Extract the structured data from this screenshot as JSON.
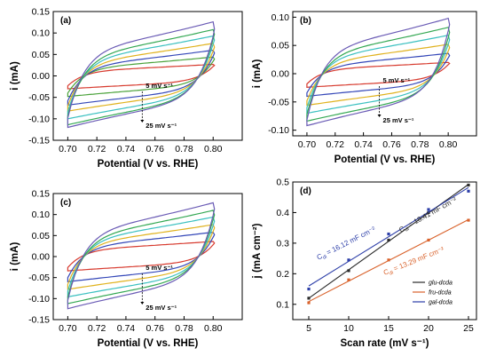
{
  "chart_data": [
    {
      "type": "line",
      "panel_label": "(a)",
      "xlabel": "Potential (V vs. RHE)",
      "ylabel": "i (mA)",
      "xlim": [
        0.69,
        0.82
      ],
      "ylim": [
        -0.15,
        0.15
      ],
      "xticks": [
        0.7,
        0.72,
        0.74,
        0.76,
        0.78,
        0.8
      ],
      "yticks": [
        -0.15,
        -0.1,
        -0.05,
        0.0,
        0.05,
        0.1,
        0.15
      ],
      "annotations": [
        "5 mV s⁻¹",
        "25 mV s⁻¹"
      ],
      "series": [
        {
          "color": "#d73a2e",
          "x_range": [
            0.7,
            0.8
          ],
          "upper": [
            -0.023,
            0.027
          ],
          "lower": [
            -0.03,
            0.022
          ]
        },
        {
          "color": "#4aa23a",
          "x_range": [
            0.7,
            0.8
          ],
          "upper": [
            -0.04,
            0.044
          ],
          "lower": [
            -0.048,
            0.034
          ]
        },
        {
          "color": "#3447b8",
          "x_range": [
            0.7,
            0.8
          ],
          "upper": [
            -0.058,
            0.06
          ],
          "lower": [
            -0.068,
            0.046
          ]
        },
        {
          "color": "#e0b21e",
          "x_range": [
            0.7,
            0.8
          ],
          "upper": [
            -0.07,
            0.076
          ],
          "lower": [
            -0.082,
            0.058
          ]
        },
        {
          "color": "#3bc0c0",
          "x_range": [
            0.7,
            0.8
          ],
          "upper": [
            -0.083,
            0.093
          ],
          "lower": [
            -0.1,
            0.074
          ]
        },
        {
          "color": "#34a853",
          "x_range": [
            0.7,
            0.8
          ],
          "upper": [
            -0.093,
            0.108
          ],
          "lower": [
            -0.114,
            0.086
          ]
        },
        {
          "color": "#6a5bb5",
          "x_range": [
            0.7,
            0.8
          ],
          "upper": [
            -0.098,
            0.126
          ],
          "lower": [
            -0.12,
            0.092
          ]
        }
      ]
    },
    {
      "type": "line",
      "panel_label": "(b)",
      "xlabel": "Potential (V vs. RHE)",
      "ylabel": "i (mA)",
      "xlim": [
        0.69,
        0.82
      ],
      "ylim": [
        -0.11,
        0.11
      ],
      "xticks": [
        0.7,
        0.72,
        0.74,
        0.76,
        0.78,
        0.8
      ],
      "yticks": [
        -0.1,
        -0.05,
        0.0,
        0.05,
        0.1
      ],
      "annotations": [
        "5 mV s⁻¹",
        "25 mV s⁻¹"
      ],
      "series": [
        {
          "color": "#d73a2e",
          "x_range": [
            0.7,
            0.8
          ],
          "upper": [
            -0.018,
            0.02
          ],
          "lower": [
            -0.024,
            0.016
          ]
        },
        {
          "color": "#3447b8",
          "x_range": [
            0.7,
            0.8
          ],
          "upper": [
            -0.034,
            0.036
          ],
          "lower": [
            -0.04,
            0.028
          ]
        },
        {
          "color": "#e0b21e",
          "x_range": [
            0.7,
            0.8
          ],
          "upper": [
            -0.048,
            0.052
          ],
          "lower": [
            -0.056,
            0.04
          ]
        },
        {
          "color": "#3bc0c0",
          "x_range": [
            0.7,
            0.8
          ],
          "upper": [
            -0.06,
            0.068
          ],
          "lower": [
            -0.07,
            0.052
          ]
        },
        {
          "color": "#34a853",
          "x_range": [
            0.7,
            0.8
          ],
          "upper": [
            -0.072,
            0.082
          ],
          "lower": [
            -0.084,
            0.064
          ]
        },
        {
          "color": "#6a5bb5",
          "x_range": [
            0.7,
            0.8
          ],
          "upper": [
            -0.082,
            0.098
          ],
          "lower": [
            -0.092,
            0.076
          ]
        }
      ]
    },
    {
      "type": "line",
      "panel_label": "(c)",
      "xlabel": "Potential (V vs. RHE)",
      "ylabel": "i (mA)",
      "xlim": [
        0.69,
        0.82
      ],
      "ylim": [
        -0.15,
        0.15
      ],
      "xticks": [
        0.7,
        0.72,
        0.74,
        0.76,
        0.78,
        0.8
      ],
      "yticks": [
        -0.15,
        -0.1,
        -0.05,
        0.0,
        0.05,
        0.1,
        0.15
      ],
      "annotations": [
        "5 mV s⁻¹",
        "25 mV s⁻¹"
      ],
      "series": [
        {
          "color": "#d73a2e",
          "x_range": [
            0.7,
            0.8
          ],
          "upper": [
            -0.026,
            0.036
          ],
          "lower": [
            -0.034,
            0.028
          ]
        },
        {
          "color": "#3447b8",
          "x_range": [
            0.7,
            0.8
          ],
          "upper": [
            -0.05,
            0.058
          ],
          "lower": [
            -0.06,
            0.046
          ]
        },
        {
          "color": "#e0b21e",
          "x_range": [
            0.7,
            0.8
          ],
          "upper": [
            -0.066,
            0.076
          ],
          "lower": [
            -0.078,
            0.06
          ]
        },
        {
          "color": "#3bc0c0",
          "x_range": [
            0.7,
            0.8
          ],
          "upper": [
            -0.082,
            0.094
          ],
          "lower": [
            -0.096,
            0.074
          ]
        },
        {
          "color": "#34a853",
          "x_range": [
            0.7,
            0.8
          ],
          "upper": [
            -0.096,
            0.11
          ],
          "lower": [
            -0.112,
            0.088
          ]
        },
        {
          "color": "#6a5bb5",
          "x_range": [
            0.7,
            0.8
          ],
          "upper": [
            -0.104,
            0.128
          ],
          "lower": [
            -0.124,
            0.098
          ]
        }
      ]
    },
    {
      "type": "scatter",
      "panel_label": "(d)",
      "xlabel": "Scan rate (mV s⁻¹)",
      "ylabel": "j (mA cm⁻²)",
      "xlim": [
        3,
        26
      ],
      "ylim": [
        0.05,
        0.5
      ],
      "xticks": [
        5,
        10,
        15,
        20,
        25
      ],
      "yticks": [
        0.1,
        0.2,
        0.3,
        0.4,
        0.5
      ],
      "legend_position": "bottom-right",
      "series": [
        {
          "name": "glu-dcda",
          "color": "#2a2a2a",
          "x": [
            5,
            10,
            15,
            20,
            25
          ],
          "y": [
            0.12,
            0.21,
            0.31,
            0.4,
            0.49
          ],
          "cdl_label": "C",
          "cdl_sub": "dl",
          "cdl_text": " = 18.41 mF cm⁻²"
        },
        {
          "name": "fru-dcda",
          "color": "#d9622b",
          "x": [
            5,
            10,
            15,
            20,
            25
          ],
          "y": [
            0.105,
            0.18,
            0.245,
            0.31,
            0.375
          ],
          "cdl_label": "C",
          "cdl_sub": "dl",
          "cdl_text": " = 13.29 mF cm⁻²"
        },
        {
          "name": "gal-dcda",
          "color": "#2c3ea8",
          "x": [
            5,
            10,
            15,
            20,
            25
          ],
          "y": [
            0.15,
            0.245,
            0.33,
            0.41,
            0.47
          ],
          "cdl_label": "C",
          "cdl_sub": "dl",
          "cdl_text": " = 16.12 mF cm⁻²"
        }
      ]
    }
  ]
}
